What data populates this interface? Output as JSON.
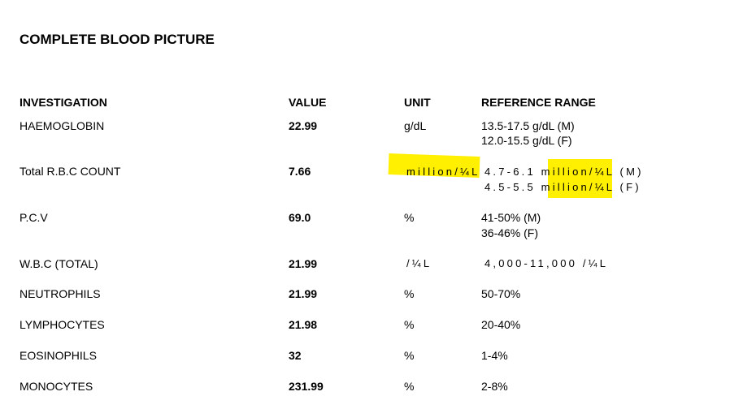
{
  "document": {
    "title": "COMPLETE BLOOD PICTURE",
    "columns": [
      "INVESTIGATION",
      "VALUE",
      "UNIT",
      "REFERENCE RANGE"
    ],
    "rows": [
      {
        "investigation": "HAEMOGLOBIN",
        "value": "22.99",
        "unit": "g/dL",
        "ref1": "13.5-17.5 g/dL (M)",
        "ref2": "12.0-15.5 g/dL (F)"
      },
      {
        "investigation": "Total R.B.C COUNT",
        "value": "7.66",
        "unit": "million/¼L",
        "ref1": "4.7-6.1 million/¼L (M)",
        "ref2": "4.5-5.5 million/¼L (F)"
      },
      {
        "investigation": "P.C.V",
        "value": "69.0",
        "unit": "%",
        "ref1": "41-50% (M)",
        "ref2": "36-46% (F)"
      },
      {
        "investigation": "W.B.C (TOTAL)",
        "value": "21.99",
        "unit": "/¼L",
        "ref1": "4,000-11,000 /¼L"
      },
      {
        "investigation": "NEUTROPHILS",
        "value": "21.99",
        "unit": "%",
        "ref1": "50-70%"
      },
      {
        "investigation": "LYMPHOCYTES",
        "value": "21.98",
        "unit": "%",
        "ref1": "20-40%"
      },
      {
        "investigation": "EOSINOPHILS",
        "value": "32",
        "unit": "%",
        "ref1": "1-4%"
      },
      {
        "investigation": "MONOCYTES",
        "value": "231.99",
        "unit": "%",
        "ref1": "2-8%"
      }
    ],
    "highlight_color": "#ffef00"
  }
}
